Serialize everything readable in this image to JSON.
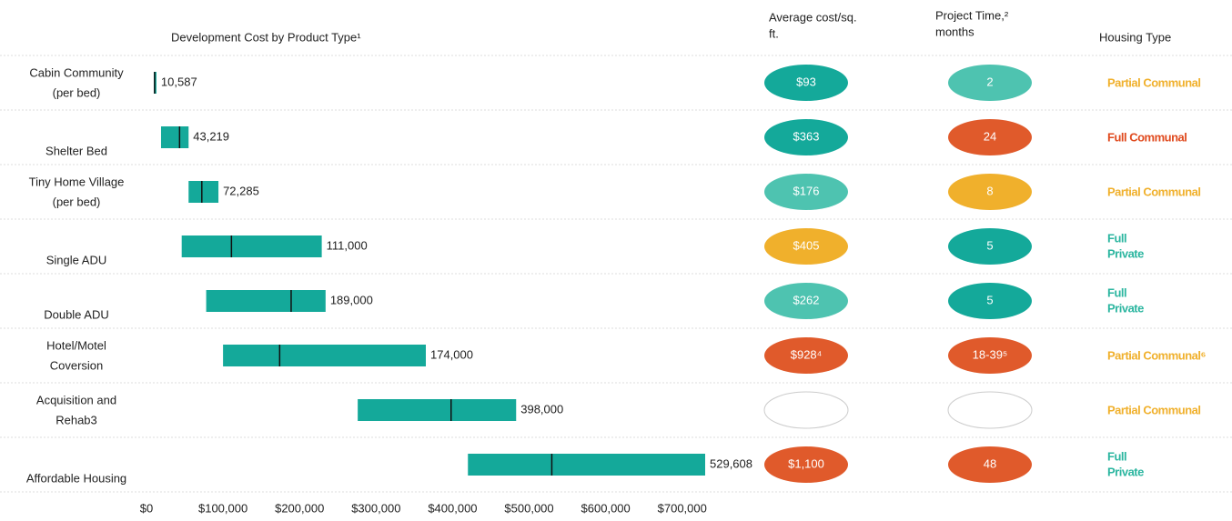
{
  "chart_data": {
    "type": "range",
    "title": "Development Cost by Product Type¹",
    "categories": [
      [
        "Cabin Community",
        "(per bed)"
      ],
      [
        "Shelter Bed"
      ],
      [
        "Tiny Home Village",
        "(per bed)"
      ],
      [
        "Single ADU"
      ],
      [
        "Double ADU"
      ],
      [
        "Hotel/Motel",
        "Coversion"
      ],
      [
        "Acquisition and",
        "Rehab3"
      ],
      [
        "Affordable Housing"
      ]
    ],
    "low": [
      9500,
      19000,
      55000,
      46000,
      78000,
      100000,
      276000,
      420000
    ],
    "high": [
      13000,
      55000,
      94000,
      229000,
      234000,
      365000,
      483000,
      730000
    ],
    "values": [
      10587,
      43219,
      72285,
      111000,
      189000,
      174000,
      398000,
      529608
    ],
    "value_labels": [
      "10,587",
      "43,219",
      "72,285",
      "111,000",
      "189,000",
      "174,000",
      "398,000",
      "529,608"
    ],
    "color": "#14a99a",
    "xlim": [
      0,
      730000
    ],
    "xticks": [
      {
        "value": 0,
        "label": "$0"
      },
      {
        "value": 100000,
        "label": "$100,000"
      },
      {
        "value": 200000,
        "label": "$200,000"
      },
      {
        "value": 300000,
        "label": "$300,000"
      },
      {
        "value": 400000,
        "label": "$400,000"
      },
      {
        "value": 500000,
        "label": "$500,000"
      },
      {
        "value": 600000,
        "label": "$600,000"
      },
      {
        "value": 700000,
        "label": "$700,000"
      }
    ]
  },
  "table": {
    "headers": {
      "cost": [
        "Average cost/sq.",
        "ft."
      ],
      "time": [
        "Project Time,²",
        "months"
      ],
      "housing": [
        "Housing Type"
      ]
    },
    "rows": [
      {
        "cost": "$93",
        "cost_color": "#14a99a",
        "time": "2",
        "time_color": "#4ec3b0",
        "housing": [
          "Partial Communal"
        ],
        "housing_color": "#f0b02c"
      },
      {
        "cost": "$363",
        "cost_color": "#14a99a",
        "time": "24",
        "time_color": "#e05a2b",
        "housing": [
          "Full Communal"
        ],
        "housing_color": "#e04a1e"
      },
      {
        "cost": "$176",
        "cost_color": "#4ec3b0",
        "time": "8",
        "time_color": "#f0b02c",
        "housing": [
          "Partial Communal"
        ],
        "housing_color": "#f0b02c"
      },
      {
        "cost": "$405",
        "cost_color": "#f0b02c",
        "time": "5",
        "time_color": "#14a99a",
        "housing": [
          "Full",
          "Private"
        ],
        "housing_color": "#2cb6a0"
      },
      {
        "cost": "$262",
        "cost_color": "#4ec3b0",
        "time": "5",
        "time_color": "#14a99a",
        "housing": [
          "Full",
          "Private"
        ],
        "housing_color": "#2cb6a0"
      },
      {
        "cost": "$928⁴",
        "cost_color": "#e05a2b",
        "time": "18-39⁵",
        "time_color": "#e05a2b",
        "housing": [
          "Partial Communal⁶"
        ],
        "housing_color": "#f0b02c"
      },
      {
        "cost": null,
        "cost_color": null,
        "time": null,
        "time_color": null,
        "housing": [
          "Partial Communal"
        ],
        "housing_color": "#f0b02c"
      },
      {
        "cost": "$1,100",
        "cost_color": "#e05a2b",
        "time": "48",
        "time_color": "#e05a2b",
        "housing": [
          "Full",
          "Private"
        ],
        "housing_color": "#2cb6a0"
      }
    ]
  }
}
